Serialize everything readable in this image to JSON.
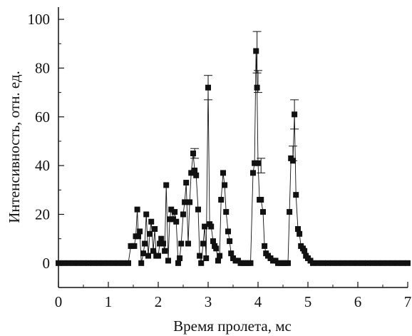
{
  "chart_data": {
    "type": "scatter",
    "title": "",
    "xlabel": "Время пролета, мс",
    "ylabel": "Интенсивность, отн. ед.",
    "xlim": [
      0,
      7
    ],
    "ylim": [
      -10,
      105
    ],
    "xticks": [
      0,
      1,
      2,
      3,
      4,
      5,
      6,
      7
    ],
    "yticks": [
      0,
      20,
      40,
      60,
      80,
      100
    ],
    "xtick_labels": [
      "0",
      "1",
      "2",
      "3",
      "4",
      "5",
      "6",
      "7"
    ],
    "ytick_labels": [
      "0",
      "20",
      "40",
      "60",
      "80",
      "100"
    ],
    "grid": false,
    "legend": "none",
    "marker": "filled-square",
    "color": "#111111",
    "series": [
      {
        "x": [
          0.0,
          0.1,
          0.2,
          0.3,
          0.4,
          0.5,
          0.6,
          0.7,
          0.8,
          0.9,
          1.0,
          1.1,
          1.2,
          1.3,
          1.4,
          1.45,
          1.48,
          1.52,
          1.55,
          1.58,
          1.6,
          1.63,
          1.66,
          1.7,
          1.73,
          1.76,
          1.8,
          1.83,
          1.86,
          1.9,
          1.93,
          1.96,
          2.0,
          2.03,
          2.06,
          2.1,
          2.13,
          2.16,
          2.2,
          2.23,
          2.26,
          2.3,
          2.33,
          2.36,
          2.4,
          2.43,
          2.46,
          2.5,
          2.53,
          2.56,
          2.6,
          2.63,
          2.66,
          2.7,
          2.73,
          2.76,
          2.8,
          2.83,
          2.86,
          2.9,
          2.93,
          2.96,
          3.0,
          3.03,
          3.06,
          3.1,
          3.13,
          3.16,
          3.2,
          3.23,
          3.26,
          3.3,
          3.33,
          3.36,
          3.4,
          3.43,
          3.46,
          3.5,
          3.55,
          3.6,
          3.65,
          3.7,
          3.75,
          3.8,
          3.85,
          3.9,
          3.93,
          3.96,
          3.98,
          4.0,
          4.03,
          4.06,
          4.1,
          4.13,
          4.16,
          4.2,
          4.25,
          4.3,
          4.35,
          4.4,
          4.45,
          4.5,
          4.55,
          4.6,
          4.63,
          4.66,
          4.7,
          4.73,
          4.76,
          4.8,
          4.83,
          4.86,
          4.9,
          4.93,
          4.96,
          5.0,
          5.05,
          5.1,
          5.2,
          5.3,
          5.4,
          5.5,
          5.6,
          5.7,
          5.8,
          5.9,
          6.0,
          6.1,
          6.2,
          6.3,
          6.4,
          6.5,
          6.6,
          6.7,
          6.8,
          6.9,
          7.0
        ],
        "y": [
          0,
          0,
          0,
          0,
          0,
          0,
          0,
          0,
          0,
          0,
          0,
          0,
          0,
          0,
          0,
          7,
          7,
          7,
          11,
          22,
          11,
          13,
          0,
          4,
          8,
          20,
          3,
          12,
          17,
          5,
          14,
          3,
          3,
          8,
          10,
          8,
          5,
          32,
          1,
          18,
          22,
          18,
          21,
          17,
          0,
          2,
          8,
          20,
          25,
          33,
          8,
          25,
          37,
          45,
          38,
          36,
          22,
          3,
          0,
          8,
          15,
          2,
          72,
          16,
          15,
          9,
          7,
          6,
          1,
          3,
          26,
          37,
          32,
          21,
          13,
          9,
          4,
          2,
          1,
          1,
          0,
          0,
          0,
          0,
          0,
          37,
          41,
          87,
          72,
          41,
          26,
          26,
          21,
          7,
          4,
          3,
          2,
          1,
          1,
          0,
          0,
          0,
          0,
          0,
          21,
          43,
          42,
          61,
          28,
          14,
          12,
          7,
          6,
          5,
          3,
          2,
          1,
          0,
          0,
          0,
          0,
          0,
          0,
          0,
          0,
          0,
          0,
          0,
          0,
          0,
          0,
          0,
          0,
          0,
          0,
          0,
          0
        ],
        "error_bars": [
          {
            "x": 3.0,
            "low": 67,
            "high": 77
          },
          {
            "x": 3.98,
            "low": 78,
            "high": 95
          },
          {
            "x": 4.0,
            "low": 70,
            "high": 79
          },
          {
            "x": 4.06,
            "low": 37,
            "high": 43
          },
          {
            "x": 4.7,
            "low": 42,
            "high": 48
          },
          {
            "x": 4.73,
            "low": 55,
            "high": 67
          },
          {
            "x": 2.73,
            "low": 43,
            "high": 47
          }
        ]
      }
    ]
  }
}
